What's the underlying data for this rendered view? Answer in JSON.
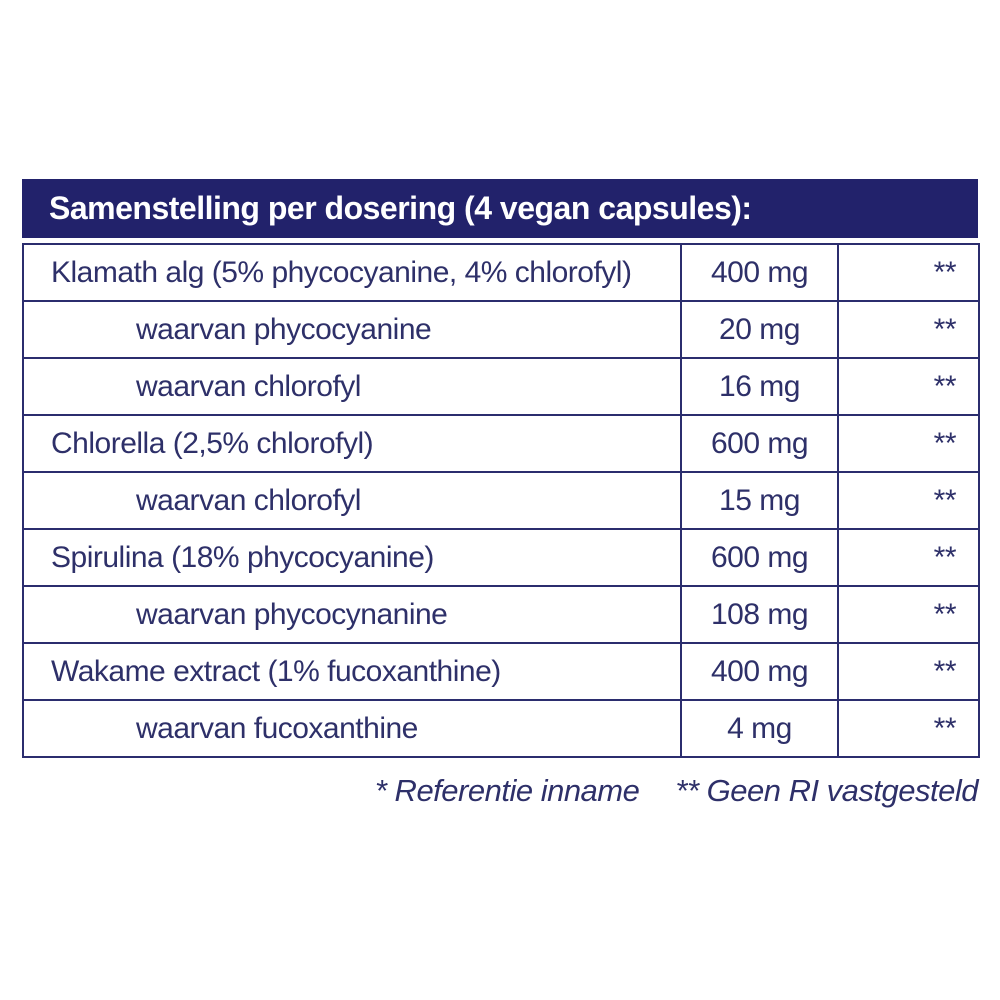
{
  "colors": {
    "header_background": "#22226B",
    "border": "#2B2D6E",
    "text": "#2E3069",
    "header_text": "#FFFFFF",
    "page_background": "#FFFFFF"
  },
  "table": {
    "title": "Samenstelling per dosering (4 vegan capsules):",
    "rows": [
      {
        "label": "Klamath alg (5% phycocyanine, 4% chlorofyl)",
        "amount": "400 mg",
        "ri": "**",
        "indent": false
      },
      {
        "label": "waarvan phycocyanine",
        "amount": "20 mg",
        "ri": "**",
        "indent": true
      },
      {
        "label": "waarvan chlorofyl",
        "amount": "16 mg",
        "ri": "**",
        "indent": true
      },
      {
        "label": "Chlorella (2,5% chlorofyl)",
        "amount": "600 mg",
        "ri": "**",
        "indent": false
      },
      {
        "label": "waarvan chlorofyl",
        "amount": "15 mg",
        "ri": "**",
        "indent": true
      },
      {
        "label": "Spirulina (18% phycocyanine)",
        "amount": "600 mg",
        "ri": "**",
        "indent": false
      },
      {
        "label": "waarvan phycocynanine",
        "amount": "108 mg",
        "ri": "**",
        "indent": true
      },
      {
        "label": "Wakame extract (1% fucoxanthine)",
        "amount": "400 mg",
        "ri": "**",
        "indent": false
      },
      {
        "label": "waarvan fucoxanthine",
        "amount": "4 mg",
        "ri": "**",
        "indent": true
      }
    ],
    "footnotes": [
      "* Referentie inname",
      "** Geen RI vastgesteld"
    ]
  }
}
